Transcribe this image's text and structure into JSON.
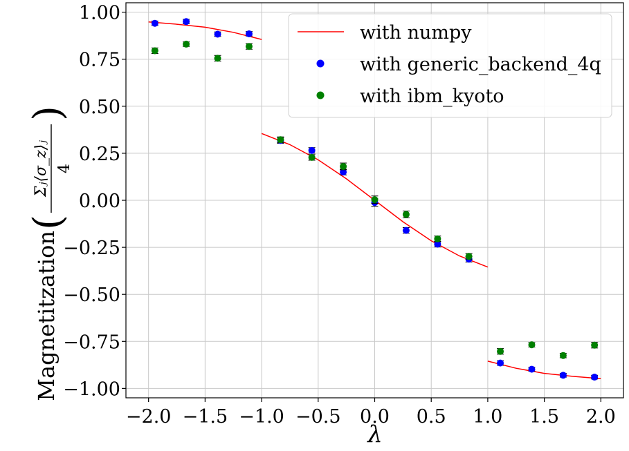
{
  "chart_data": {
    "type": "scatter",
    "xlabel": "λ",
    "ylabel": {
      "prefix": "Magnetitzation",
      "numerator": "Σⱼ⟨σ_z⟩ⱼ",
      "denominator": "4"
    },
    "xlim": [
      -2.2,
      2.2
    ],
    "ylim": [
      -1.05,
      1.05
    ],
    "grid": true,
    "legend_position": "top-right",
    "x_ticks": [
      {
        "value": -2.0,
        "label": "−2.0"
      },
      {
        "value": -1.5,
        "label": "−1.5"
      },
      {
        "value": -1.0,
        "label": "−1.0"
      },
      {
        "value": -0.5,
        "label": "−0.5"
      },
      {
        "value": 0.0,
        "label": "0.0"
      },
      {
        "value": 0.5,
        "label": "0.5"
      },
      {
        "value": 1.0,
        "label": "1.0"
      },
      {
        "value": 1.5,
        "label": "1.5"
      },
      {
        "value": 2.0,
        "label": "2.0"
      }
    ],
    "y_ticks": [
      {
        "value": 1.0,
        "label": "1.00"
      },
      {
        "value": 0.75,
        "label": "0.75"
      },
      {
        "value": 0.5,
        "label": "0.50"
      },
      {
        "value": 0.25,
        "label": "0.25"
      },
      {
        "value": 0.0,
        "label": "0.00"
      },
      {
        "value": -0.25,
        "label": "−0.25"
      },
      {
        "value": -0.5,
        "label": "−0.50"
      },
      {
        "value": -0.75,
        "label": "−0.75"
      },
      {
        "value": -1.0,
        "label": "−1.00"
      }
    ],
    "lines": [
      {
        "name": "with numpy",
        "color": "#ff0000",
        "segments": [
          [
            [
              -2.0,
              0.948
            ],
            [
              -1.75,
              0.936
            ],
            [
              -1.5,
              0.92
            ],
            [
              -1.25,
              0.893
            ],
            [
              -1.0,
              0.855
            ]
          ],
          [
            [
              -1.0,
              0.355
            ],
            [
              -0.75,
              0.296
            ],
            [
              -0.5,
              0.215
            ],
            [
              -0.25,
              0.114
            ],
            [
              0.0,
              0.0
            ],
            [
              0.25,
              -0.114
            ],
            [
              0.5,
              -0.215
            ],
            [
              0.75,
              -0.296
            ],
            [
              1.0,
              -0.355
            ]
          ],
          [
            [
              1.0,
              -0.855
            ],
            [
              1.25,
              -0.893
            ],
            [
              1.5,
              -0.92
            ],
            [
              1.75,
              -0.936
            ],
            [
              2.0,
              -0.948
            ]
          ]
        ]
      }
    ],
    "series": [
      {
        "name": "with generic_backend_4q",
        "color": "#0000ff",
        "points": [
          {
            "x": -1.944,
            "y": 0.941,
            "err": 0.012
          },
          {
            "x": -1.667,
            "y": 0.95,
            "err": 0.012
          },
          {
            "x": -1.389,
            "y": 0.883,
            "err": 0.012
          },
          {
            "x": -1.111,
            "y": 0.885,
            "err": 0.012
          },
          {
            "x": -0.833,
            "y": 0.318,
            "err": 0.015
          },
          {
            "x": -0.556,
            "y": 0.265,
            "err": 0.015
          },
          {
            "x": -0.278,
            "y": 0.15,
            "err": 0.015
          },
          {
            "x": 0.0,
            "y": -0.012,
            "err": 0.02
          },
          {
            "x": 0.278,
            "y": -0.16,
            "err": 0.015
          },
          {
            "x": 0.556,
            "y": -0.233,
            "err": 0.015
          },
          {
            "x": 0.833,
            "y": -0.313,
            "err": 0.015
          },
          {
            "x": 1.111,
            "y": -0.865,
            "err": 0.012
          },
          {
            "x": 1.389,
            "y": -0.898,
            "err": 0.01
          },
          {
            "x": 1.667,
            "y": -0.93,
            "err": 0.01
          },
          {
            "x": 1.944,
            "y": -0.94,
            "err": 0.01
          }
        ]
      },
      {
        "name": "with ibm_kyoto",
        "color": "#008000",
        "points": [
          {
            "x": -1.944,
            "y": 0.795,
            "err": 0.015
          },
          {
            "x": -1.667,
            "y": 0.83,
            "err": 0.012
          },
          {
            "x": -1.389,
            "y": 0.755,
            "err": 0.015
          },
          {
            "x": -1.111,
            "y": 0.818,
            "err": 0.015
          },
          {
            "x": -0.833,
            "y": 0.322,
            "err": 0.015
          },
          {
            "x": -0.556,
            "y": 0.228,
            "err": 0.015
          },
          {
            "x": -0.278,
            "y": 0.18,
            "err": 0.018
          },
          {
            "x": 0.0,
            "y": 0.003,
            "err": 0.02
          },
          {
            "x": 0.278,
            "y": -0.075,
            "err": 0.018
          },
          {
            "x": 0.556,
            "y": -0.205,
            "err": 0.015
          },
          {
            "x": 0.833,
            "y": -0.298,
            "err": 0.015
          },
          {
            "x": 1.111,
            "y": -0.803,
            "err": 0.015
          },
          {
            "x": 1.389,
            "y": -0.768,
            "err": 0.012
          },
          {
            "x": 1.667,
            "y": -0.825,
            "err": 0.012
          },
          {
            "x": 1.944,
            "y": -0.77,
            "err": 0.015
          }
        ]
      }
    ]
  }
}
